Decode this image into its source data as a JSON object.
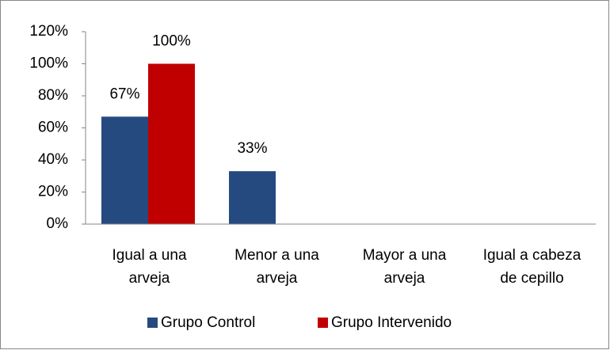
{
  "chart_data": {
    "type": "bar",
    "categories": [
      "Igual a una arveja",
      "Menor a una arveja",
      "Mayor a una arveja",
      "Igual a cabeza de cepillo"
    ],
    "series": [
      {
        "name": "Grupo Control",
        "color": "#254a80",
        "values": [
          67,
          33,
          0,
          0
        ],
        "value_labels": [
          "67%",
          "33%",
          null,
          null
        ]
      },
      {
        "name": "Grupo Intervenido",
        "color": "#c00000",
        "values": [
          100,
          0,
          0,
          0
        ],
        "value_labels": [
          "100%",
          null,
          null,
          null
        ]
      }
    ],
    "ylim": [
      0,
      120
    ],
    "yticks": [
      {
        "value": 0,
        "label": "0%"
      },
      {
        "value": 20,
        "label": "20%"
      },
      {
        "value": 40,
        "label": "40%"
      },
      {
        "value": 60,
        "label": "60%"
      },
      {
        "value": 80,
        "label": "80%"
      },
      {
        "value": 100,
        "label": "100%"
      },
      {
        "value": 120,
        "label": "120%"
      }
    ],
    "legend": "bottom"
  }
}
